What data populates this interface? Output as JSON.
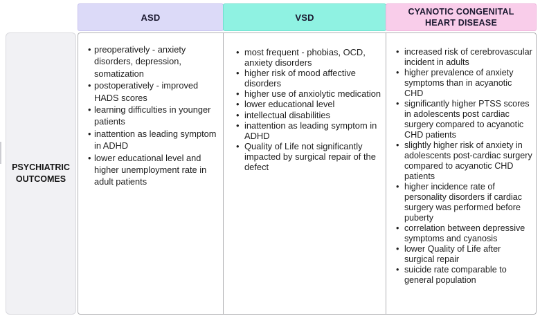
{
  "table": {
    "row_label": "PSYCHIATRIC OUTCOMES",
    "columns": [
      {
        "header": "ASD",
        "header_bg": "#dcdaf8",
        "header_border": "#c6c1ee",
        "items": [
          "preoperatively - anxiety disorders, depression, somatization",
          "postoperatively - improved HADS scores",
          "learning difficulties in younger patients",
          "inattention as leading symptom in ADHD",
          "lower educational level and higher unemployment rate in adult patients"
        ]
      },
      {
        "header": "VSD",
        "header_bg": "#8ff2e2",
        "header_border": "#6ee0ce",
        "items": [
          "most frequent - phobias, OCD, anxiety disorders",
          "higher risk of mood affective disorders",
          "higher use of anxiolytic medication",
          "lower educational level",
          "intellectual disabilities",
          "inattention as leading symptom in ADHD",
          "Quality of Life not significantly impacted by surgical repair of the defect"
        ]
      },
      {
        "header": "CYANOTIC CONGENITAL HEART DISEASE",
        "header_bg": "#f9cdea",
        "header_border": "#efb4db",
        "items": [
          "increased risk of cerebrovascular incident in adults",
          "higher prevalence of anxiety symptoms than in acyanotic CHD",
          "significantly higher PTSS scores in adolescents post cardiac surgery compared to acyanotic CHD patients",
          "slightly higher risk of anxiety in adolescents post-cardiac surgery compared to acyanotic CHD patients",
          "higher incidence rate of personality disorders if cardiac surgery was performed before puberty",
          "correlation between depressive symptoms and cyanosis",
          "lower Quality of Life after surgical repair",
          "suicide rate comparable to general population"
        ]
      }
    ]
  },
  "colors": {
    "asd_header_bg": "#dcdaf8",
    "vsd_header_bg": "#8ff2e2",
    "cchd_header_bg": "#f9cdea",
    "label_cell_bg": "#f1f1f4",
    "body_cell_border": "#b0b0b3"
  }
}
